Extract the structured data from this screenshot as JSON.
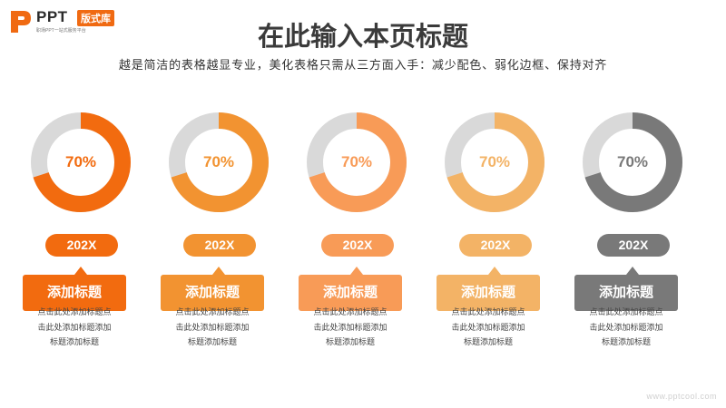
{
  "logo": {
    "text": "PPT",
    "badge": "版式库",
    "tagline": "职场PPT一站式服务平台"
  },
  "title": "在此输入本页标题",
  "subtitle": "越是简洁的表格越显专业，美化表格只需从三方面入手：减少配色、弱化边框、保持对齐",
  "chart_data": {
    "type": "pie",
    "variant": "donut",
    "track_color": "#d9d9d9",
    "items": [
      {
        "value": 70,
        "label": "70%",
        "color": "#f26b0f"
      },
      {
        "value": 70,
        "label": "70%",
        "color": "#f29331"
      },
      {
        "value": 70,
        "label": "70%",
        "color": "#f89b57"
      },
      {
        "value": 70,
        "label": "70%",
        "color": "#f3b366"
      },
      {
        "value": 70,
        "label": "70%",
        "color": "#797979"
      }
    ]
  },
  "items": [
    {
      "year": "202X",
      "heading": "添加标题",
      "desc": [
        "点击此处添加标题点",
        "击此处添加标题添加",
        "标题添加标题"
      ],
      "color": "#f26b0f"
    },
    {
      "year": "202X",
      "heading": "添加标题",
      "desc": [
        "点击此处添加标题点",
        "击此处添加标题添加",
        "标题添加标题"
      ],
      "color": "#f29331"
    },
    {
      "year": "202X",
      "heading": "添加标题",
      "desc": [
        "点击此处添加标题点",
        "击此处添加标题添加",
        "标题添加标题"
      ],
      "color": "#f89b57"
    },
    {
      "year": "202X",
      "heading": "添加标题",
      "desc": [
        "点击此处添加标题点",
        "击此处添加标题添加",
        "标题添加标题"
      ],
      "color": "#f3b366"
    },
    {
      "year": "202X",
      "heading": "添加标题",
      "desc": [
        "点击此处添加标题点",
        "击此处添加标题添加",
        "标题添加标题"
      ],
      "color": "#797979"
    }
  ],
  "watermark": "www.pptcool.com"
}
